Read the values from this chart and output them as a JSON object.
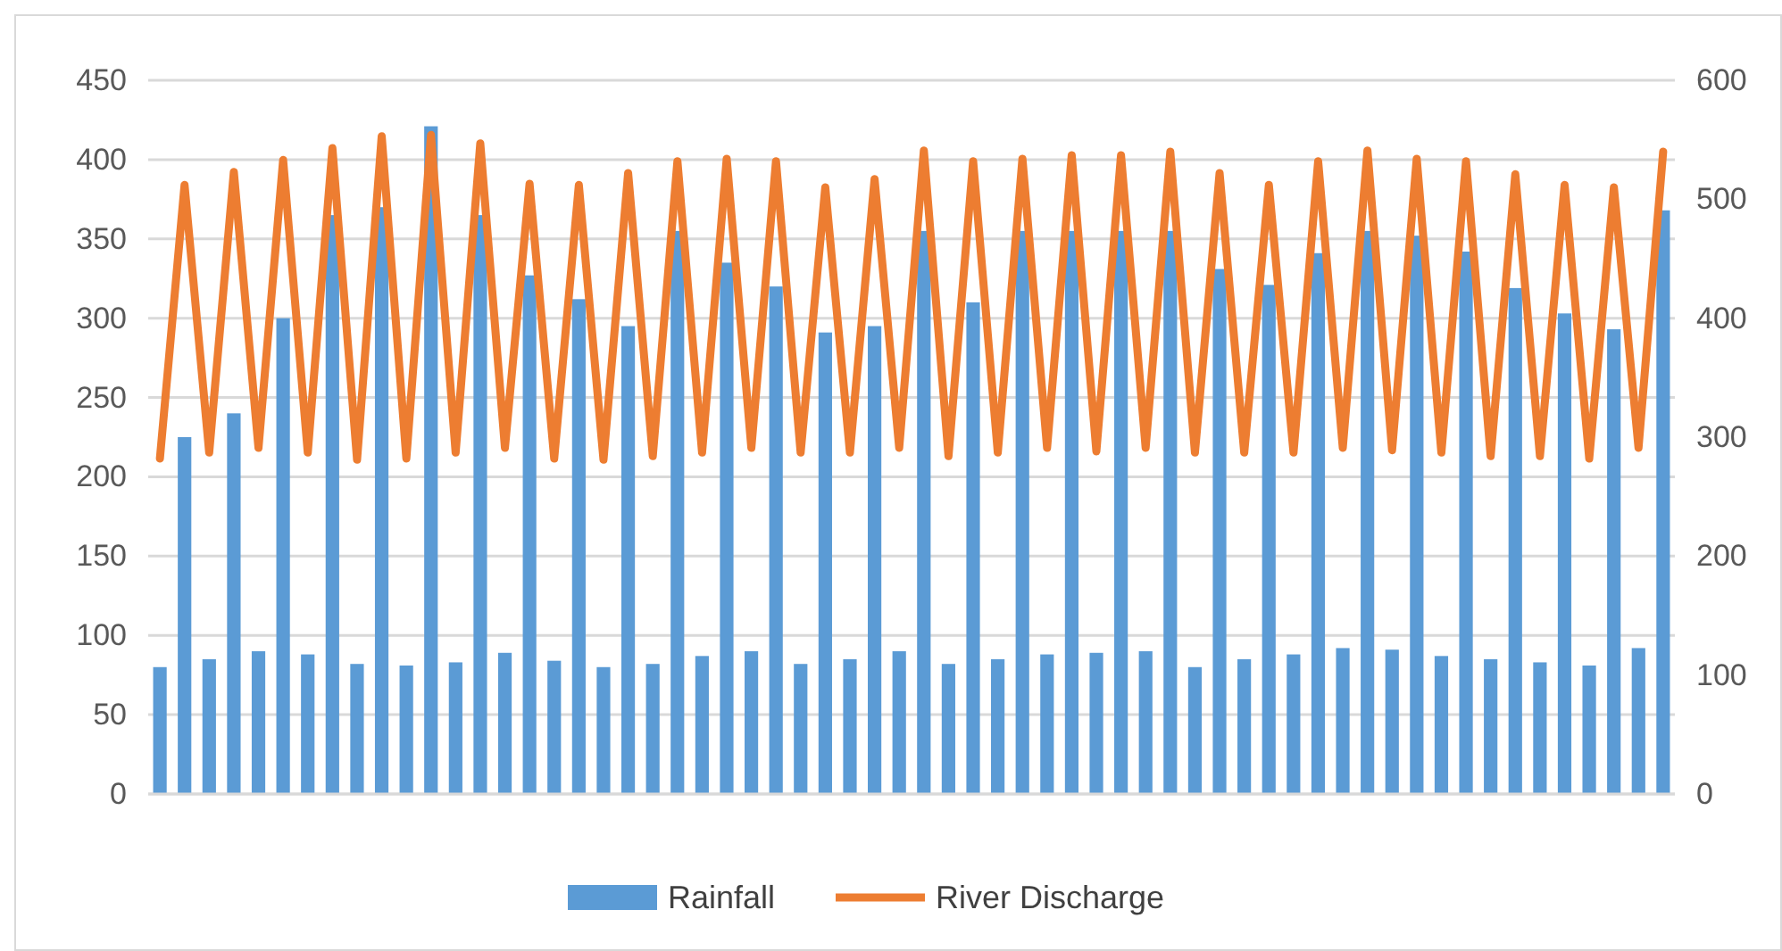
{
  "chart_data": {
    "type": "bar",
    "categories": [
      null,
      null,
      null,
      null,
      null,
      null,
      null,
      null,
      null,
      null,
      null,
      null,
      null,
      null,
      null,
      null,
      null,
      null,
      null,
      null,
      null,
      null,
      null,
      null,
      null,
      null,
      null,
      null,
      null,
      null,
      null,
      null,
      null,
      null,
      null,
      null,
      null,
      null,
      null,
      null,
      null,
      null,
      null,
      null,
      null,
      null,
      null,
      null,
      null,
      null,
      null,
      null,
      null,
      null,
      null,
      null,
      null,
      null,
      null,
      null,
      null,
      null
    ],
    "series": [
      {
        "name": "Rainfall",
        "color": "#5b9bd5",
        "values": [
          80,
          225,
          85,
          240,
          90,
          300,
          88,
          365,
          82,
          370,
          81,
          421,
          83,
          365,
          89,
          327,
          84,
          312,
          80,
          295,
          82,
          355,
          87,
          335,
          90,
          320,
          82,
          291,
          85,
          295,
          90,
          355,
          82,
          310,
          85,
          355,
          88,
          355,
          89,
          355,
          90,
          355,
          80,
          331,
          85,
          321,
          88,
          341,
          92,
          355,
          91,
          352,
          87,
          342,
          85,
          319,
          83,
          303,
          81,
          293,
          92,
          368
        ]
      },
      {
        "name": "River Discharge",
        "type": "line",
        "axis": "y2",
        "color": "#ed7d31",
        "values": [
          282,
          512,
          287,
          523,
          291,
          533,
          287,
          543,
          281,
          553,
          282,
          554,
          287,
          547,
          291,
          513,
          282,
          512,
          281,
          522,
          284,
          532,
          287,
          534,
          291,
          532,
          287,
          510,
          287,
          517,
          291,
          541,
          284,
          532,
          287,
          534,
          291,
          537,
          288,
          537,
          291,
          540,
          287,
          522,
          287,
          512,
          287,
          532,
          291,
          541,
          289,
          534,
          287,
          532,
          284,
          521,
          284,
          512,
          282,
          510,
          291,
          540
        ]
      }
    ],
    "ylim": [
      0,
      450
    ],
    "yticks": [
      0,
      50,
      100,
      150,
      200,
      250,
      300,
      350,
      400,
      450
    ],
    "y2lim": [
      0,
      600
    ],
    "y2ticks": [
      0,
      100,
      200,
      300,
      400,
      500,
      600
    ],
    "grid": "y",
    "legend": "bottom"
  }
}
